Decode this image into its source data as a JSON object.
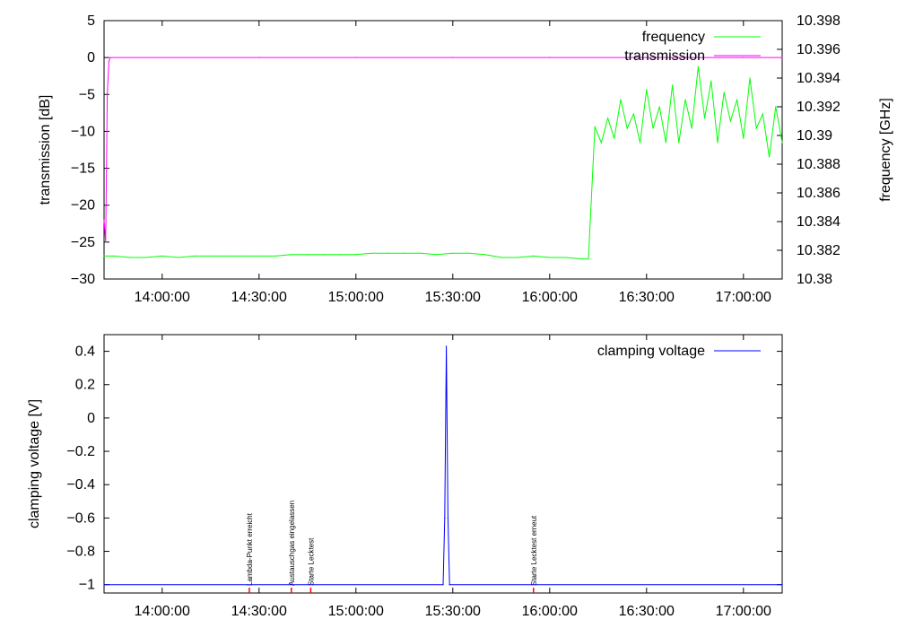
{
  "chart_data": [
    {
      "type": "line",
      "ylabel": "transmission [dB]",
      "y2label": "frequency [GHz]",
      "x_range": [
        "13:42:00",
        "17:12:00"
      ],
      "ylim": [
        -30,
        5
      ],
      "y2lim": [
        10.38,
        10.398
      ],
      "x_ticks": [
        "14:00:00",
        "14:30:00",
        "15:00:00",
        "15:30:00",
        "16:00:00",
        "16:30:00",
        "17:00:00"
      ],
      "y_ticks": [
        "5",
        "0",
        "-5",
        "-10",
        "-15",
        "-20",
        "-25",
        "-30"
      ],
      "y2_ticks": [
        "10.398",
        "10.396",
        "10.394",
        "10.392",
        "10.39",
        "10.388",
        "10.386",
        "10.384",
        "10.382",
        "10.38"
      ],
      "legend_position": "top-right",
      "series": [
        {
          "name": "frequency",
          "axis": "y2",
          "color": "#00ff00",
          "x": [
            "13:42:00",
            "13:45:00",
            "13:50:00",
            "13:55:00",
            "14:00:00",
            "14:05:00",
            "14:10:00",
            "14:15:00",
            "14:20:00",
            "14:25:00",
            "14:30:00",
            "14:35:00",
            "14:40:00",
            "14:45:00",
            "14:50:00",
            "14:55:00",
            "15:00:00",
            "15:05:00",
            "15:10:00",
            "15:15:00",
            "15:20:00",
            "15:25:00",
            "15:30:00",
            "15:35:00",
            "15:40:00",
            "15:45:00",
            "15:50:00",
            "15:55:00",
            "16:00:00",
            "16:05:00",
            "16:10:00",
            "16:12:00",
            "16:14:00",
            "16:16:00",
            "16:18:00",
            "16:20:00",
            "16:22:00",
            "16:24:00",
            "16:26:00",
            "16:28:00",
            "16:30:00",
            "16:32:00",
            "16:34:00",
            "16:36:00",
            "16:38:00",
            "16:40:00",
            "16:42:00",
            "16:44:00",
            "16:46:00",
            "16:48:00",
            "16:50:00",
            "16:52:00",
            "16:54:00",
            "16:56:00",
            "16:58:00",
            "17:00:00",
            "17:02:00",
            "17:04:00",
            "17:06:00",
            "17:08:00",
            "17:10:00",
            "17:12:00"
          ],
          "values": [
            10.3816,
            10.3816,
            10.3815,
            10.3815,
            10.3816,
            10.3815,
            10.3816,
            10.3816,
            10.3816,
            10.3816,
            10.3816,
            10.3816,
            10.3817,
            10.3817,
            10.3817,
            10.3817,
            10.3817,
            10.3818,
            10.3818,
            10.3818,
            10.3818,
            10.3817,
            10.3818,
            10.3818,
            10.3817,
            10.3815,
            10.3815,
            10.3816,
            10.3815,
            10.3815,
            10.3814,
            10.3814,
            10.3906,
            10.3895,
            10.3912,
            10.3898,
            10.3925,
            10.3905,
            10.3915,
            10.3895,
            10.3932,
            10.3905,
            10.392,
            10.3895,
            10.3935,
            10.3895,
            10.3925,
            10.3905,
            10.3948,
            10.3912,
            10.3938,
            10.3895,
            10.393,
            10.391,
            10.3925,
            10.3898,
            10.394,
            10.3905,
            10.3915,
            10.3885,
            10.392,
            10.3895
          ]
        },
        {
          "name": "transmission",
          "axis": "y",
          "color": "#ff00ff",
          "x": [
            "13:42:00",
            "13:42:30",
            "13:43:00",
            "13:43:30",
            "13:44:00",
            "14:30:00",
            "15:00:00",
            "15:30:00",
            "16:00:00",
            "16:30:00",
            "17:00:00",
            "17:12:00"
          ],
          "values": [
            -22,
            -25,
            -5,
            -0.5,
            0,
            0,
            0,
            0,
            0,
            0,
            0,
            0
          ]
        }
      ]
    },
    {
      "type": "line",
      "ylabel": "clamping voltage [V]",
      "x_range": [
        "13:42:00",
        "17:12:00"
      ],
      "ylim": [
        -1.05,
        0.5
      ],
      "x_ticks": [
        "14:00:00",
        "14:30:00",
        "15:00:00",
        "15:30:00",
        "16:00:00",
        "16:30:00",
        "17:00:00"
      ],
      "y_ticks": [
        "0.4",
        "0.2",
        "0",
        "-0.2",
        "-0.4",
        "-0.6",
        "-0.8",
        "-1"
      ],
      "legend_position": "top-right",
      "series": [
        {
          "name": "clamping voltage",
          "color": "#0000ff",
          "x": [
            "13:42:00",
            "15:27:00",
            "15:27:30",
            "15:28:00",
            "15:28:30",
            "15:29:00",
            "17:12:00"
          ],
          "values": [
            -1,
            -1,
            -0.6,
            0.43,
            -0.6,
            -1,
            -1
          ]
        }
      ],
      "annotations": [
        {
          "x": "14:27:00",
          "text": "Lambda-Punkt erreicht"
        },
        {
          "x": "14:40:00",
          "text": "Austauschgas eingelassen"
        },
        {
          "x": "14:46:00",
          "text": "Starte Lecktest"
        },
        {
          "x": "15:55:00",
          "text": "Starte Lecktest erneut"
        }
      ]
    }
  ]
}
